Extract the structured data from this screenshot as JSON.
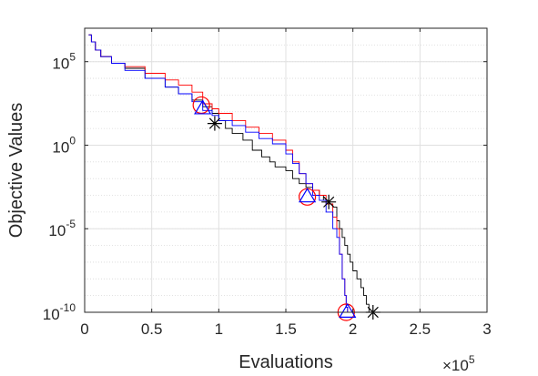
{
  "chart_data": {
    "type": "line",
    "title": "",
    "xlabel": "Evaluations",
    "ylabel": "Objective Values",
    "x_multiplier": "×10^5",
    "x_multiplier_base": "×10",
    "x_multiplier_exp": "5",
    "xlim": [
      0,
      3
    ],
    "ylim": [
      1e-10,
      10000000.0
    ],
    "y_scale": "log",
    "grid": true,
    "legend": "none",
    "x_ticks": [
      0,
      0.5,
      1,
      1.5,
      2,
      2.5,
      3
    ],
    "x_tick_labels": [
      "0",
      "0.5",
      "1",
      "1.5",
      "2",
      "2.5",
      "3"
    ],
    "y_ticks": [
      1e-10,
      1e-05,
      1,
      100000.0
    ],
    "y_tick_labels": [
      {
        "base": "10",
        "exp": "-10"
      },
      {
        "base": "10",
        "exp": "-5"
      },
      {
        "base": "10",
        "exp": "0"
      },
      {
        "base": "10",
        "exp": "5"
      }
    ],
    "series": [
      {
        "color": "#000000",
        "marker": "asterisk",
        "x": [
          0.03,
          0.05,
          0.08,
          0.12,
          0.2,
          0.3,
          0.45,
          0.6,
          0.7,
          0.8,
          0.88,
          0.95,
          1.0,
          1.05,
          1.1,
          1.18,
          1.25,
          1.32,
          1.38,
          1.42,
          1.5,
          1.55,
          1.6,
          1.65,
          1.7,
          1.75,
          1.78,
          1.82,
          1.85,
          1.88,
          1.9,
          1.92,
          1.94,
          1.96,
          1.98,
          2.0,
          2.03,
          2.06,
          2.08,
          2.1,
          2.12,
          2.14,
          2.15
        ],
        "y": [
          4000000.0,
          1500000.0,
          500000.0,
          200000.0,
          80000.0,
          40000.0,
          10000.0,
          3000,
          1200,
          500,
          200,
          80,
          30,
          10,
          5,
          2,
          0.5,
          0.2,
          0.1,
          0.05,
          0.03,
          0.01,
          0.005,
          0.003,
          0.002,
          0.001,
          0.0005,
          0.0003,
          0.0002,
          3e-05,
          1e-05,
          3e-06,
          1e-06,
          3e-07,
          1e-07,
          3e-08,
          1e-08,
          3e-09,
          1e-09,
          3e-10,
          1e-10,
          1e-10,
          1e-10
        ],
        "markers": [
          {
            "x": 0.97,
            "y": 20
          },
          {
            "x": 1.82,
            "y": 0.0004
          },
          {
            "x": 2.15,
            "y": 1e-10
          }
        ]
      },
      {
        "color": "#ff0000",
        "marker": "circle",
        "x": [
          0.03,
          0.05,
          0.08,
          0.12,
          0.2,
          0.3,
          0.45,
          0.6,
          0.7,
          0.8,
          0.88,
          0.95,
          1.0,
          1.1,
          1.2,
          1.3,
          1.4,
          1.5,
          1.55,
          1.6,
          1.65,
          1.7,
          1.75,
          1.8,
          1.85,
          1.88,
          1.9,
          1.92,
          1.94,
          1.95,
          1.96
        ],
        "y": [
          4000000.0,
          1500000.0,
          500000.0,
          200000.0,
          80000.0,
          50000.0,
          20000.0,
          8000,
          4000,
          1500,
          300,
          150,
          80,
          30,
          12,
          5,
          2,
          0.5,
          0.1,
          0.02,
          0.005,
          0.002,
          0.001,
          0.0003,
          5e-05,
          1e-05,
          3e-07,
          1e-08,
          1e-09,
          2e-10,
          1e-10
        ],
        "markers": [
          {
            "x": 0.87,
            "y": 250
          },
          {
            "x": 1.66,
            "y": 0.0008
          },
          {
            "x": 1.95,
            "y": 1e-10
          }
        ]
      },
      {
        "color": "#0000ff",
        "marker": "triangle",
        "x": [
          0.03,
          0.05,
          0.08,
          0.12,
          0.2,
          0.3,
          0.45,
          0.6,
          0.7,
          0.8,
          0.88,
          0.95,
          1.0,
          1.1,
          1.2,
          1.3,
          1.4,
          1.5,
          1.55,
          1.6,
          1.65,
          1.7,
          1.75,
          1.8,
          1.85,
          1.88,
          1.9,
          1.92,
          1.94,
          1.95,
          1.96
        ],
        "y": [
          4000000.0,
          1500000.0,
          500000.0,
          200000.0,
          80000.0,
          30000.0,
          10000.0,
          3000,
          1200,
          400,
          120,
          60,
          30,
          15,
          6,
          2.5,
          1.2,
          0.3,
          0.08,
          0.02,
          0.005,
          0.001,
          0.0005,
          0.0001,
          1e-05,
          3e-06,
          3e-07,
          1e-08,
          1e-09,
          2e-10,
          1e-10
        ],
        "markers": [
          {
            "x": 0.88,
            "y": 150
          },
          {
            "x": 1.66,
            "y": 0.0008
          },
          {
            "x": 1.96,
            "y": 1e-10
          }
        ]
      }
    ]
  }
}
